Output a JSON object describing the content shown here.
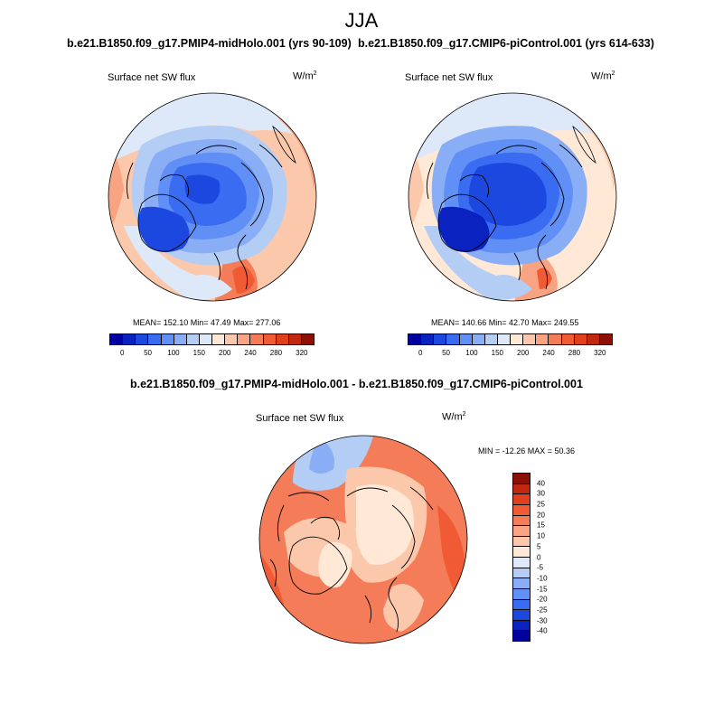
{
  "season": "JJA",
  "panel_left": {
    "run_title": "b.e21.B1850.f09_g17.PMIP4-midHolo.001 (yrs 90-109)",
    "variable": "Surface net SW flux",
    "unit_base": "W/m",
    "unit_exp": "2",
    "stats": "MEAN= 152.10  Min=  47.49  Max= 277.06"
  },
  "panel_right": {
    "run_title": "b.e21.B1850.f09_g17.CMIP6-piControl.001 (yrs 614-633)",
    "variable": "Surface net SW flux",
    "unit_base": "W/m",
    "unit_exp": "2",
    "stats": "MEAN= 140.66  Min=  42.70  Max= 249.55"
  },
  "panel_diff": {
    "run_title": "b.e21.B1850.f09_g17.PMIP4-midHolo.001 - b.e21.B1850.f09_g17.CMIP6-piControl.001",
    "variable": "Surface net SW flux",
    "unit_base": "W/m",
    "unit_exp": "2",
    "stats": "MIN = -12.26 MAX =  50.36"
  },
  "colorbar_abs": {
    "colors": [
      "#0000a0",
      "#0a22c0",
      "#1c48e0",
      "#3a6cf2",
      "#6090f5",
      "#8aaef5",
      "#b4cdf5",
      "#dde9f8",
      "#ffe8d6",
      "#fcc8ac",
      "#f8a482",
      "#f57c58",
      "#f05a34",
      "#e0401e",
      "#c02810",
      "#8c1006"
    ],
    "tick_labels": [
      "0",
      "50",
      "100",
      "150",
      "200",
      "240",
      "280",
      "320"
    ]
  },
  "colorbar_diff": {
    "colors": [
      "#8c1006",
      "#c02810",
      "#e0401e",
      "#f05a34",
      "#f57c58",
      "#f8a482",
      "#fcc8ac",
      "#ffe8d6",
      "#dde9f8",
      "#b4cdf5",
      "#8aaef5",
      "#6090f5",
      "#3a6cf2",
      "#1c48e0",
      "#0a22c0",
      "#0000a0"
    ],
    "tick_labels": [
      "40",
      "30",
      "25",
      "20",
      "15",
      "10",
      "5",
      "0",
      "-5",
      "-10",
      "-15",
      "-20",
      "-25",
      "-30",
      "-40"
    ]
  }
}
